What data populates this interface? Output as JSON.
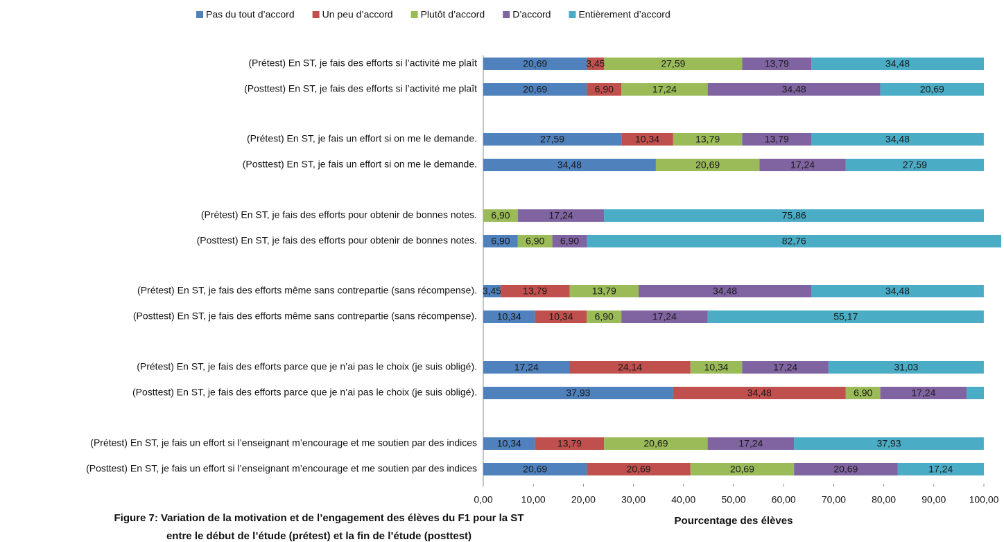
{
  "chart_data": {
    "type": "stacked-barh",
    "title": [
      "Figure 7: Variation de la motivation et de l’engagement des élèves du F1 pour la ST",
      "entre le début de l’étude (prétest) et la fin de l’étude (posttest)"
    ],
    "xlabel": "Pourcentage des élèves",
    "categories": [
      "(Prétest) En ST, je fais des efforts si l’activité me plaît",
      "(Posttest) En ST, je fais des efforts si l’activité me plaît",
      "(Prétest) En ST, je fais un effort si on me le demande.",
      "(Posttest) En ST, je fais un effort si on me le demande.",
      "(Prétest) En ST, je fais des efforts pour obtenir de bonnes notes.",
      "(Posttest) En ST, je fais des efforts pour obtenir de bonnes notes.",
      "(Prétest) En ST, je fais des efforts même sans contrepartie (sans récompense).",
      "(Posttest) En ST, je fais des efforts même sans contrepartie (sans récompense).",
      "(Prétest) En ST, je fais des efforts parce que je n’ai pas le choix (je suis obligé).",
      "(Posttest) En ST, je fais des efforts parce que je n’ai pas le choix (je suis obligé).",
      "(Prétest) En ST, je fais un effort si l’enseignant m’encourage et me soutien par des indices",
      "(Posttest) En ST, je fais un effort si l’enseignant m’encourage et me soutien par des indices"
    ],
    "series": [
      {
        "name": "Pas du tout d’accord",
        "color": "#4f81bd",
        "values": [
          20.69,
          20.69,
          27.59,
          34.48,
          null,
          6.9,
          3.45,
          10.34,
          17.24,
          37.93,
          10.34,
          20.69
        ],
        "value_labels": [
          "20,69",
          "20,69",
          "27,59",
          "34,48",
          null,
          "6,90",
          "3,45",
          "10,34",
          "17,24",
          "37,93",
          "10,34",
          "20,69"
        ]
      },
      {
        "name": "Un peu d’accord",
        "color": "#c0504d",
        "values": [
          3.45,
          6.9,
          10.34,
          null,
          null,
          null,
          13.79,
          10.34,
          24.14,
          34.48,
          13.79,
          20.69
        ],
        "value_labels": [
          "3,45",
          "6,90",
          "10,34",
          null,
          null,
          null,
          "13,79",
          "10,34",
          "24,14",
          "34,48",
          "13,79",
          "20,69"
        ]
      },
      {
        "name": "Plutôt d’accord",
        "color": "#9bbb59",
        "values": [
          27.59,
          17.24,
          13.79,
          20.69,
          6.9,
          6.9,
          13.79,
          6.9,
          10.34,
          6.9,
          20.69,
          20.69
        ],
        "value_labels": [
          "27,59",
          "17,24",
          "13,79",
          "20,69",
          "6,90",
          "6,90",
          "13,79",
          "6,90",
          "10,34",
          "6,90",
          "20,69",
          "20,69"
        ]
      },
      {
        "name": "D’accord",
        "color": "#8064a2",
        "values": [
          13.79,
          34.48,
          13.79,
          17.24,
          17.24,
          6.9,
          34.48,
          17.24,
          17.24,
          17.24,
          17.24,
          20.69
        ],
        "value_labels": [
          "13,79",
          "34,48",
          "13,79",
          "17,24",
          "17,24",
          "6,90",
          "34,48",
          "17,24",
          "17,24",
          "17,24",
          "17,24",
          "20,69"
        ]
      },
      {
        "name": "Entièrement d’accord",
        "color": "#4bacc6",
        "values": [
          34.48,
          20.69,
          34.48,
          27.59,
          75.86,
          82.76,
          34.48,
          55.17,
          31.03,
          3.45,
          37.93,
          17.24
        ],
        "value_labels": [
          "34,48",
          "20,69",
          "34,48",
          "27,59",
          "75,86",
          "82,76",
          "34,48",
          "55,17",
          "31,03",
          null,
          "37,93",
          "17,24"
        ]
      }
    ],
    "xlim": [
      0,
      100
    ],
    "xticks": [
      {
        "value": 0,
        "label": "0,00"
      },
      {
        "value": 10,
        "label": "10,00"
      },
      {
        "value": 20,
        "label": "20,00"
      },
      {
        "value": 30,
        "label": "30,00"
      },
      {
        "value": 40,
        "label": "40,00"
      },
      {
        "value": 50,
        "label": "50,00"
      },
      {
        "value": 60,
        "label": "60,00"
      },
      {
        "value": 70,
        "label": "70,00"
      },
      {
        "value": 80,
        "label": "80,00"
      },
      {
        "value": 90,
        "label": "90,00"
      },
      {
        "value": 100,
        "label": "100,00"
      }
    ],
    "legend": "top",
    "grid": false
  }
}
